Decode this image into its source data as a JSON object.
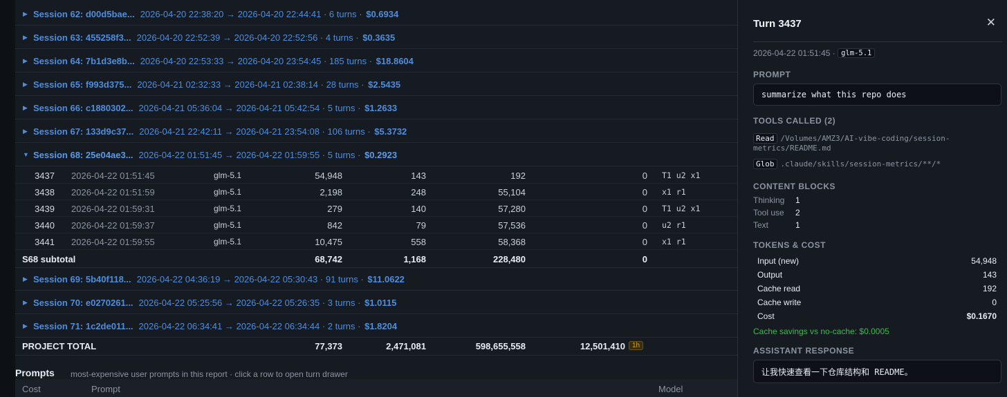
{
  "sessions_before": [
    {
      "title": "Session 62: d00d5bae...",
      "range": "2026-04-20 22:38:20 → 2026-04-20 22:44:41",
      "turns": "6 turns",
      "cost": "$0.6934"
    },
    {
      "title": "Session 63: 455258f3...",
      "range": "2026-04-20 22:52:39 → 2026-04-20 22:52:56",
      "turns": "4 turns",
      "cost": "$0.3635"
    },
    {
      "title": "Session 64: 7b1d3e8b...",
      "range": "2026-04-20 22:53:33 → 2026-04-20 23:54:45",
      "turns": "185 turns",
      "cost": "$18.8604"
    },
    {
      "title": "Session 65: f993d375...",
      "range": "2026-04-21 02:32:33 → 2026-04-21 02:38:14",
      "turns": "28 turns",
      "cost": "$2.5435"
    },
    {
      "title": "Session 66: c1880302...",
      "range": "2026-04-21 05:36:04 → 2026-04-21 05:42:54",
      "turns": "5 turns",
      "cost": "$1.2633"
    },
    {
      "title": "Session 67: 133d9c37...",
      "range": "2026-04-21 22:42:11 → 2026-04-21 23:54:08",
      "turns": "106 turns",
      "cost": "$5.3732"
    }
  ],
  "open_session": {
    "title": "Session 68: 25e04ae3...",
    "range": "2026-04-22 01:51:45 → 2026-04-22 01:59:55",
    "turns": "5 turns",
    "cost": "$0.2923"
  },
  "turns": [
    {
      "id": "3437",
      "ts": "2026-04-22 01:51:45",
      "model": "glm-5.1",
      "input": "54,948",
      "output": "143",
      "cache_read": "192",
      "cache_write": "0",
      "tools": "T1 u2 x1"
    },
    {
      "id": "3438",
      "ts": "2026-04-22 01:51:59",
      "model": "glm-5.1",
      "input": "2,198",
      "output": "248",
      "cache_read": "55,104",
      "cache_write": "0",
      "tools": "x1 r1"
    },
    {
      "id": "3439",
      "ts": "2026-04-22 01:59:31",
      "model": "glm-5.1",
      "input": "279",
      "output": "140",
      "cache_read": "57,280",
      "cache_write": "0",
      "tools": "T1 u2 x1"
    },
    {
      "id": "3440",
      "ts": "2026-04-22 01:59:37",
      "model": "glm-5.1",
      "input": "842",
      "output": "79",
      "cache_read": "57,536",
      "cache_write": "0",
      "tools": "u2 r1"
    },
    {
      "id": "3441",
      "ts": "2026-04-22 01:59:55",
      "model": "glm-5.1",
      "input": "10,475",
      "output": "558",
      "cache_read": "58,368",
      "cache_write": "0",
      "tools": "x1 r1"
    }
  ],
  "subtotal": {
    "label": "S68 subtotal",
    "input": "68,742",
    "output": "1,168",
    "cache_read": "228,480",
    "cache_write": "0"
  },
  "sessions_after": [
    {
      "title": "Session 69: 5b40f118...",
      "range": "2026-04-22 04:36:19 → 2026-04-22 05:30:43",
      "turns": "91 turns",
      "cost": "$11.0622"
    },
    {
      "title": "Session 70: e0270261...",
      "range": "2026-04-22 05:25:56 → 2026-04-22 05:26:35",
      "turns": "3 turns",
      "cost": "$1.0115"
    },
    {
      "title": "Session 71: 1c2de011...",
      "range": "2026-04-22 06:34:41 → 2026-04-22 06:34:44",
      "turns": "2 turns",
      "cost": "$1.8204"
    }
  ],
  "project_total": {
    "label": "PROJECT TOTAL",
    "input": "77,373",
    "output": "2,471,081",
    "cache_read": "598,655,558",
    "cache_write": "12,501,410",
    "badge": "1h"
  },
  "prompts": {
    "title": "Prompts",
    "subtitle": "most-expensive user prompts in this report · click a row to open turn drawer",
    "col_cost": "Cost",
    "col_prompt": "Prompt",
    "col_model": "Model"
  },
  "drawer": {
    "title": "Turn 3437",
    "close": "✕",
    "timestamp": "2026-04-22 01:51:45",
    "model": "glm-5.1",
    "prompt_label": "PROMPT",
    "prompt_text": "summarize what this repo does",
    "tools_label": "TOOLS CALLED (2)",
    "tools": [
      {
        "name": "Read",
        "arg_line1": "/Volumes/AMZ3/AI-vibe-coding/session-",
        "arg_line2": "metrics/README.md"
      },
      {
        "name": "Glob",
        "arg_line1": ".claude/skills/session-metrics/**/*",
        "arg_line2": ""
      }
    ],
    "blocks_label": "CONTENT BLOCKS",
    "blocks": [
      {
        "k": "Thinking",
        "v": "1"
      },
      {
        "k": "Tool use",
        "v": "2"
      },
      {
        "k": "Text",
        "v": "1"
      }
    ],
    "tokens_label": "TOKENS & COST",
    "tokens": [
      {
        "k": "Input (new)",
        "v": "54,948"
      },
      {
        "k": "Output",
        "v": "143"
      },
      {
        "k": "Cache read",
        "v": "192"
      },
      {
        "k": "Cache write",
        "v": "0"
      },
      {
        "k": "Cost",
        "v": "$0.1670"
      }
    ],
    "savings": "Cache savings vs no-cache: $0.0005",
    "response_label": "ASSISTANT RESPONSE",
    "response_text": "让我快速查看一下仓库结构和 README。"
  },
  "colors": {
    "link": "#4f8ddc",
    "savings": "#3fb950",
    "badge": "#d4a72c"
  },
  "icons": {
    "collapsed": "triangle-right-icon",
    "expanded": "triangle-down-icon",
    "close": "close-icon"
  }
}
